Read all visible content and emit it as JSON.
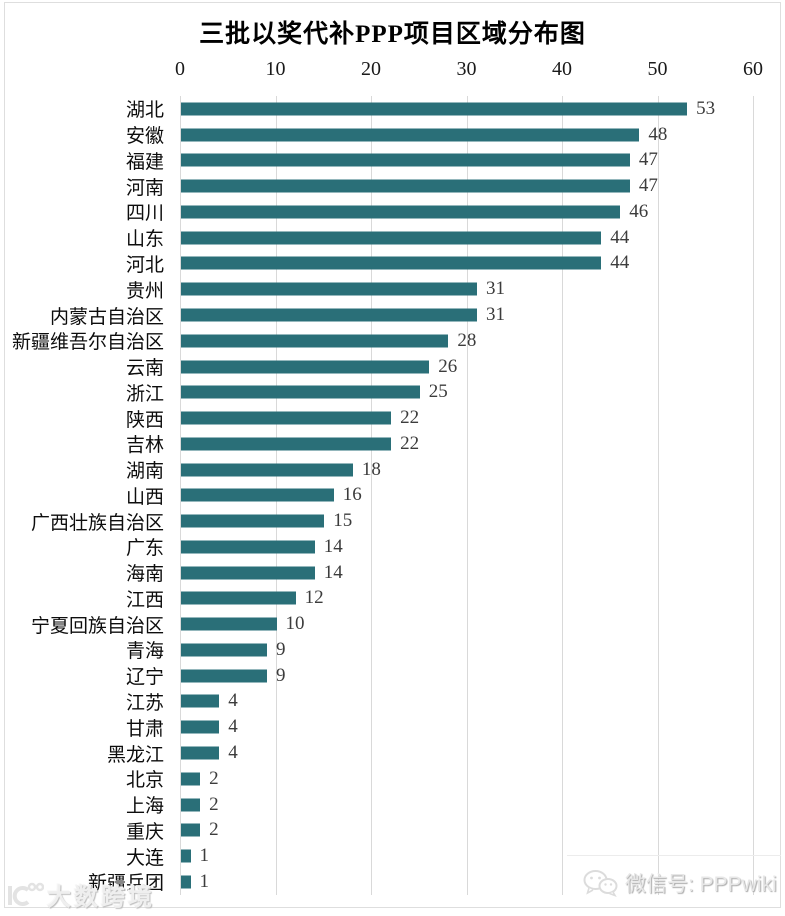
{
  "chart_data": {
    "type": "bar",
    "orientation": "horizontal",
    "title": "三批以奖代补PPP项目区域分布图",
    "categories": [
      "湖北",
      "安徽",
      "福建",
      "河南",
      "四川",
      "山东",
      "河北",
      "贵州",
      "内蒙古自治区",
      "新疆维吾尔自治区",
      "云南",
      "浙江",
      "陕西",
      "吉林",
      "湖南",
      "山西",
      "广西壮族自治区",
      "广东",
      "海南",
      "江西",
      "宁夏回族自治区",
      "青海",
      "辽宁",
      "江苏",
      "甘肃",
      "黑龙江",
      "北京",
      "上海",
      "重庆",
      "大连",
      "新疆兵团"
    ],
    "values": [
      53,
      48,
      47,
      47,
      46,
      44,
      44,
      31,
      31,
      28,
      26,
      25,
      22,
      22,
      18,
      16,
      15,
      14,
      14,
      12,
      10,
      9,
      9,
      4,
      4,
      4,
      2,
      2,
      2,
      1,
      1
    ],
    "xlabel": "",
    "ylabel": "",
    "xlim": [
      0,
      60
    ],
    "xticks": [
      0,
      10,
      20,
      30,
      40,
      50,
      60
    ],
    "grid": "vertical gridlines on, ticks on top",
    "legend": "none",
    "value_labels": "shown at end of each bar",
    "bar_color": "#2a6f78",
    "gridline_color": "#d9d9d9"
  },
  "watermarks": {
    "bottom_left": {
      "logo": "dashu-kuajing-logo",
      "text": "大数跨境"
    },
    "bottom_right": {
      "icon": "wechat-icon",
      "text": "微信号: PPPwiki"
    }
  }
}
